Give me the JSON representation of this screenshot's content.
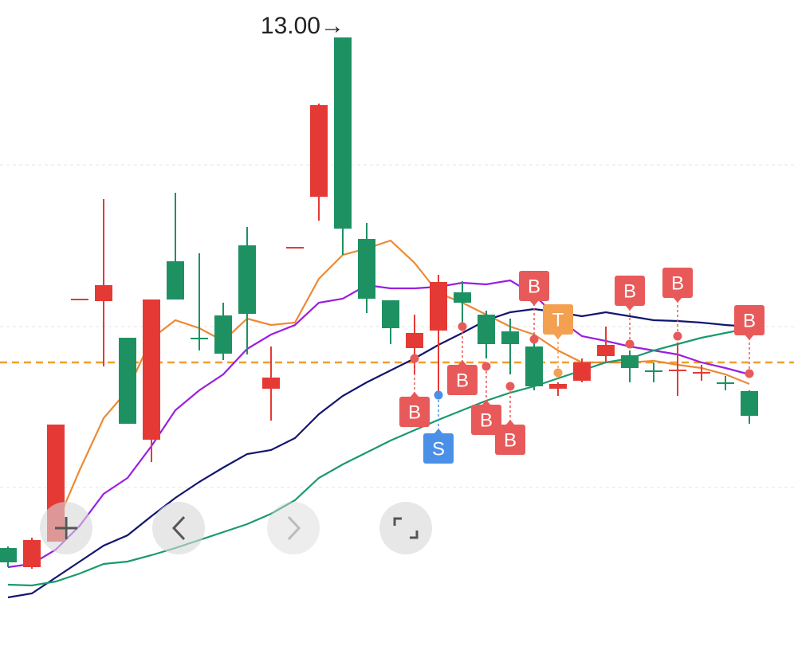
{
  "chart_data": {
    "type": "candlestick",
    "annotation": "13.00→",
    "ylim": [
      5.36,
      13.47
    ],
    "grid_lines": [
      11.4,
      9.37,
      7.35
    ],
    "price_line": 8.92,
    "price_line_color": "#f0a030",
    "open": [
      6.59,
      6.35,
      6.67,
      9.71,
      9.69,
      9.23,
      7.95,
      10.19,
      9.22,
      9.51,
      10.39,
      8.59,
      10.36,
      11.0,
      13.0,
      10.47,
      9.7,
      9.1,
      9.32,
      9.8,
      9.52,
      9.31,
      9.12,
      8.59,
      8.69,
      9.0,
      9.01,
      8.81,
      8.82,
      8.79,
      8.66,
      8.56
    ],
    "high": [
      6.61,
      6.72,
      8.14,
      9.71,
      10.97,
      9.23,
      9.71,
      11.05,
      10.29,
      9.67,
      10.62,
      9.12,
      10.36,
      12.17,
      13.0,
      10.67,
      9.7,
      9.52,
      10.02,
      9.94,
      9.57,
      9.47,
      9.27,
      8.67,
      8.97,
      9.37,
      9.07,
      8.92,
      9.17,
      8.89,
      8.75,
      8.57
    ],
    "low": [
      6.35,
      6.33,
      6.67,
      9.71,
      8.87,
      8.15,
      7.67,
      9.71,
      9.07,
      8.95,
      9.02,
      8.19,
      10.36,
      10.7,
      10.27,
      9.54,
      9.15,
      8.77,
      8.47,
      9.37,
      8.97,
      8.77,
      8.57,
      8.5,
      8.67,
      8.92,
      8.67,
      8.67,
      8.5,
      8.69,
      8.57,
      8.15
    ],
    "close": [
      6.41,
      6.69,
      8.14,
      9.71,
      9.89,
      8.15,
      9.71,
      9.71,
      9.22,
      9.03,
      9.53,
      8.73,
      10.36,
      12.15,
      10.6,
      9.72,
      9.35,
      9.29,
      9.93,
      9.67,
      9.15,
      9.15,
      8.62,
      8.65,
      8.92,
      9.14,
      8.85,
      8.81,
      8.82,
      8.79,
      8.66,
      8.25
    ],
    "candle_colors": [
      "#1e9163",
      "#e53935",
      "#e53935",
      "#e53935",
      "#e53935",
      "#1e9163",
      "#e53935",
      "#1e9163",
      "#1e9163",
      "#1e9163",
      "#1e9163",
      "#e53935",
      "#e53935",
      "#e53935",
      "#1e9163",
      "#1e9163",
      "#1e9163",
      "#e53935",
      "#e53935",
      "#1e9163",
      "#1e9163",
      "#1e9163",
      "#1e9163",
      "#e53935",
      "#e53935",
      "#e53935",
      "#1e9163",
      "#1e9163",
      "#e53935",
      "#e53935",
      "#1e9163",
      "#1e9163"
    ],
    "series": [
      {
        "color": "#ec8a35",
        "values": [
          null,
          null,
          6.87,
          7.57,
          8.22,
          8.57,
          9.22,
          9.45,
          9.35,
          9.19,
          9.47,
          9.39,
          9.42,
          9.97,
          10.27,
          10.35,
          10.45,
          10.17,
          9.79,
          9.67,
          9.52,
          9.37,
          9.27,
          9.07,
          8.92,
          8.92,
          8.92,
          8.94,
          8.89,
          8.85,
          8.77,
          8.65
        ]
      },
      {
        "color": "#9b1ee0",
        "values": [
          6.35,
          6.39,
          6.57,
          6.87,
          7.27,
          7.47,
          7.87,
          8.32,
          8.57,
          8.77,
          9.09,
          9.27,
          9.39,
          9.67,
          9.72,
          9.89,
          9.85,
          9.85,
          9.87,
          9.92,
          9.9,
          9.95,
          9.77,
          9.47,
          9.25,
          9.19,
          9.12,
          9.07,
          9.02,
          8.92,
          8.85,
          8.77
        ]
      },
      {
        "color": "#12166e",
        "values": [
          5.97,
          6.02,
          6.22,
          6.42,
          6.62,
          6.75,
          6.99,
          7.22,
          7.42,
          7.6,
          7.77,
          7.82,
          7.97,
          8.27,
          8.5,
          8.67,
          8.82,
          8.97,
          9.14,
          9.29,
          9.45,
          9.55,
          9.59,
          9.55,
          9.5,
          9.55,
          9.5,
          9.45,
          9.44,
          9.42,
          9.39,
          9.37
        ]
      },
      {
        "color": "#1a9a6c",
        "values": [
          6.13,
          6.12,
          6.17,
          6.27,
          6.39,
          6.42,
          6.5,
          6.59,
          6.69,
          6.79,
          6.89,
          7.02,
          7.19,
          7.47,
          7.64,
          7.79,
          7.94,
          8.07,
          8.2,
          8.32,
          8.44,
          8.54,
          8.62,
          8.72,
          8.82,
          8.92,
          8.97,
          9.07,
          9.15,
          9.23,
          9.29,
          9.35
        ]
      }
    ],
    "markers": [
      {
        "index": 17,
        "label": "B",
        "price": 8.97,
        "side": "below",
        "color": "#e85a5a"
      },
      {
        "index": 18,
        "label": "S",
        "price": 8.51,
        "side": "below",
        "color": "#4a90e8"
      },
      {
        "index": 19,
        "label": "B",
        "price": 9.37,
        "side": "below",
        "color": "#e85a5a"
      },
      {
        "index": 20,
        "label": "B",
        "price": 8.87,
        "side": "below",
        "color": "#e85a5a"
      },
      {
        "index": 21,
        "label": "B",
        "price": 8.62,
        "side": "below",
        "color": "#e85a5a"
      },
      {
        "index": 22,
        "label": "B",
        "price": 9.21,
        "side": "above",
        "color": "#e85a5a"
      },
      {
        "index": 23,
        "label": "T",
        "price": 8.79,
        "side": "above",
        "color": "#f3a050"
      },
      {
        "index": 26,
        "label": "B",
        "price": 9.15,
        "side": "above",
        "color": "#e85a5a"
      },
      {
        "index": 28,
        "label": "B",
        "price": 9.25,
        "side": "above",
        "color": "#e85a5a"
      },
      {
        "index": 31,
        "label": "B",
        "price": 8.78,
        "side": "above",
        "color": "#e85a5a"
      }
    ]
  }
}
